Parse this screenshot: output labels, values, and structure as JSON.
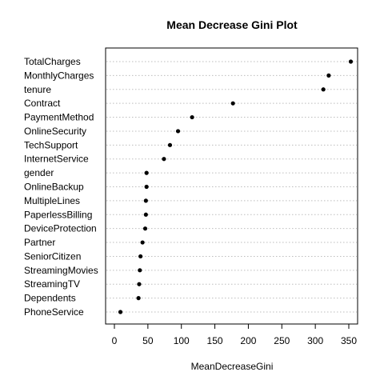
{
  "chart_data": {
    "type": "scatter",
    "title": "Mean Decrease Gini Plot",
    "xlabel": "MeanDecreaseGini",
    "ylabel": "",
    "xlim": [
      0,
      360
    ],
    "xticks": [
      0,
      50,
      100,
      150,
      200,
      250,
      300,
      350
    ],
    "grid": "horizontal dotted lines per variable",
    "categories": [
      "TotalCharges",
      "MonthlyCharges",
      "tenure",
      "Contract",
      "PaymentMethod",
      "OnlineSecurity",
      "TechSupport",
      "InternetService",
      "gender",
      "OnlineBackup",
      "MultipleLines",
      "PaperlessBilling",
      "DeviceProtection",
      "Partner",
      "SeniorCitizen",
      "StreamingMovies",
      "StreamingTV",
      "Dependents",
      "PhoneService"
    ],
    "values": [
      353,
      320,
      312,
      177,
      116,
      95,
      83,
      74,
      48,
      48,
      47,
      47,
      46,
      42,
      39,
      38,
      37,
      36,
      9
    ]
  }
}
